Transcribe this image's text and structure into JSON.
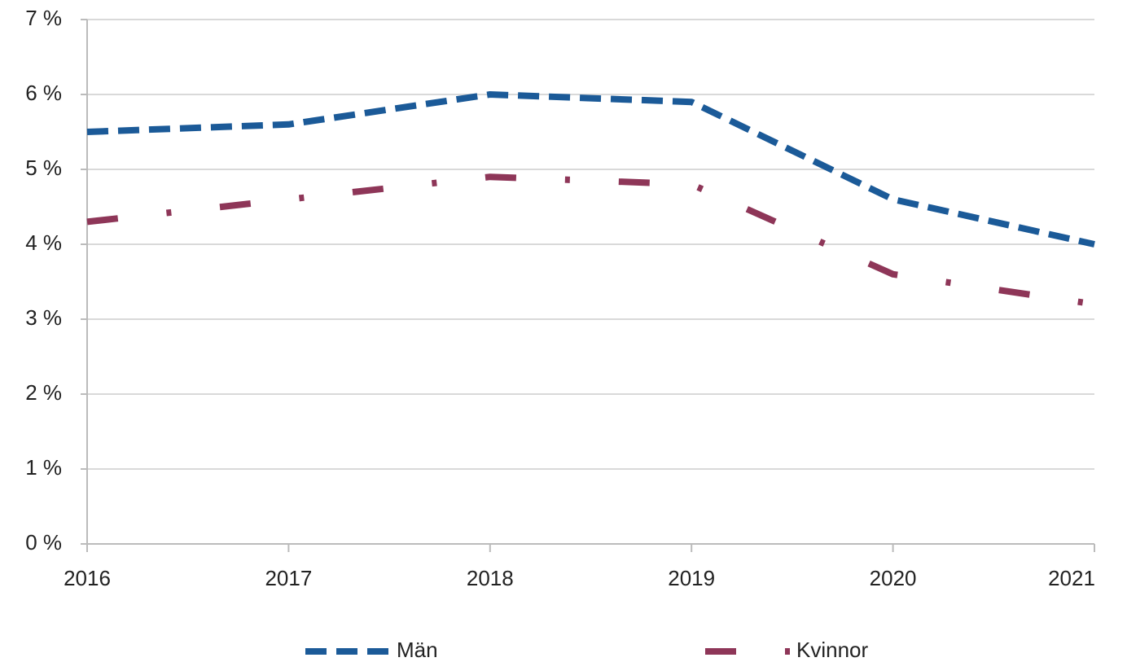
{
  "chart_data": {
    "type": "line",
    "x": [
      2016,
      2017,
      2018,
      2019,
      2020,
      2021
    ],
    "series": [
      {
        "name": "Män",
        "color": "#1b5a98",
        "dash": "dash",
        "values": [
          5.5,
          5.6,
          6.0,
          5.9,
          4.6,
          4.0
        ]
      },
      {
        "name": "Kvinnor",
        "color": "#8e3658",
        "dash": "dashdot",
        "values": [
          4.3,
          4.6,
          4.9,
          4.8,
          3.6,
          3.2
        ]
      }
    ],
    "xlim": [
      2016,
      2021
    ],
    "xticks": [
      2016,
      2017,
      2018,
      2019,
      2020,
      2021
    ],
    "ylim": [
      0,
      7
    ],
    "yticks": [
      {
        "value": 0,
        "label": "0 %"
      },
      {
        "value": 1,
        "label": "1 %"
      },
      {
        "value": 2,
        "label": "2 %"
      },
      {
        "value": 3,
        "label": "3 %"
      },
      {
        "value": 4,
        "label": "4 %"
      },
      {
        "value": 5,
        "label": "5 %"
      },
      {
        "value": 6,
        "label": "6 %"
      },
      {
        "value": 7,
        "label": "7 %"
      }
    ],
    "grid": true,
    "legend": "bottom"
  }
}
